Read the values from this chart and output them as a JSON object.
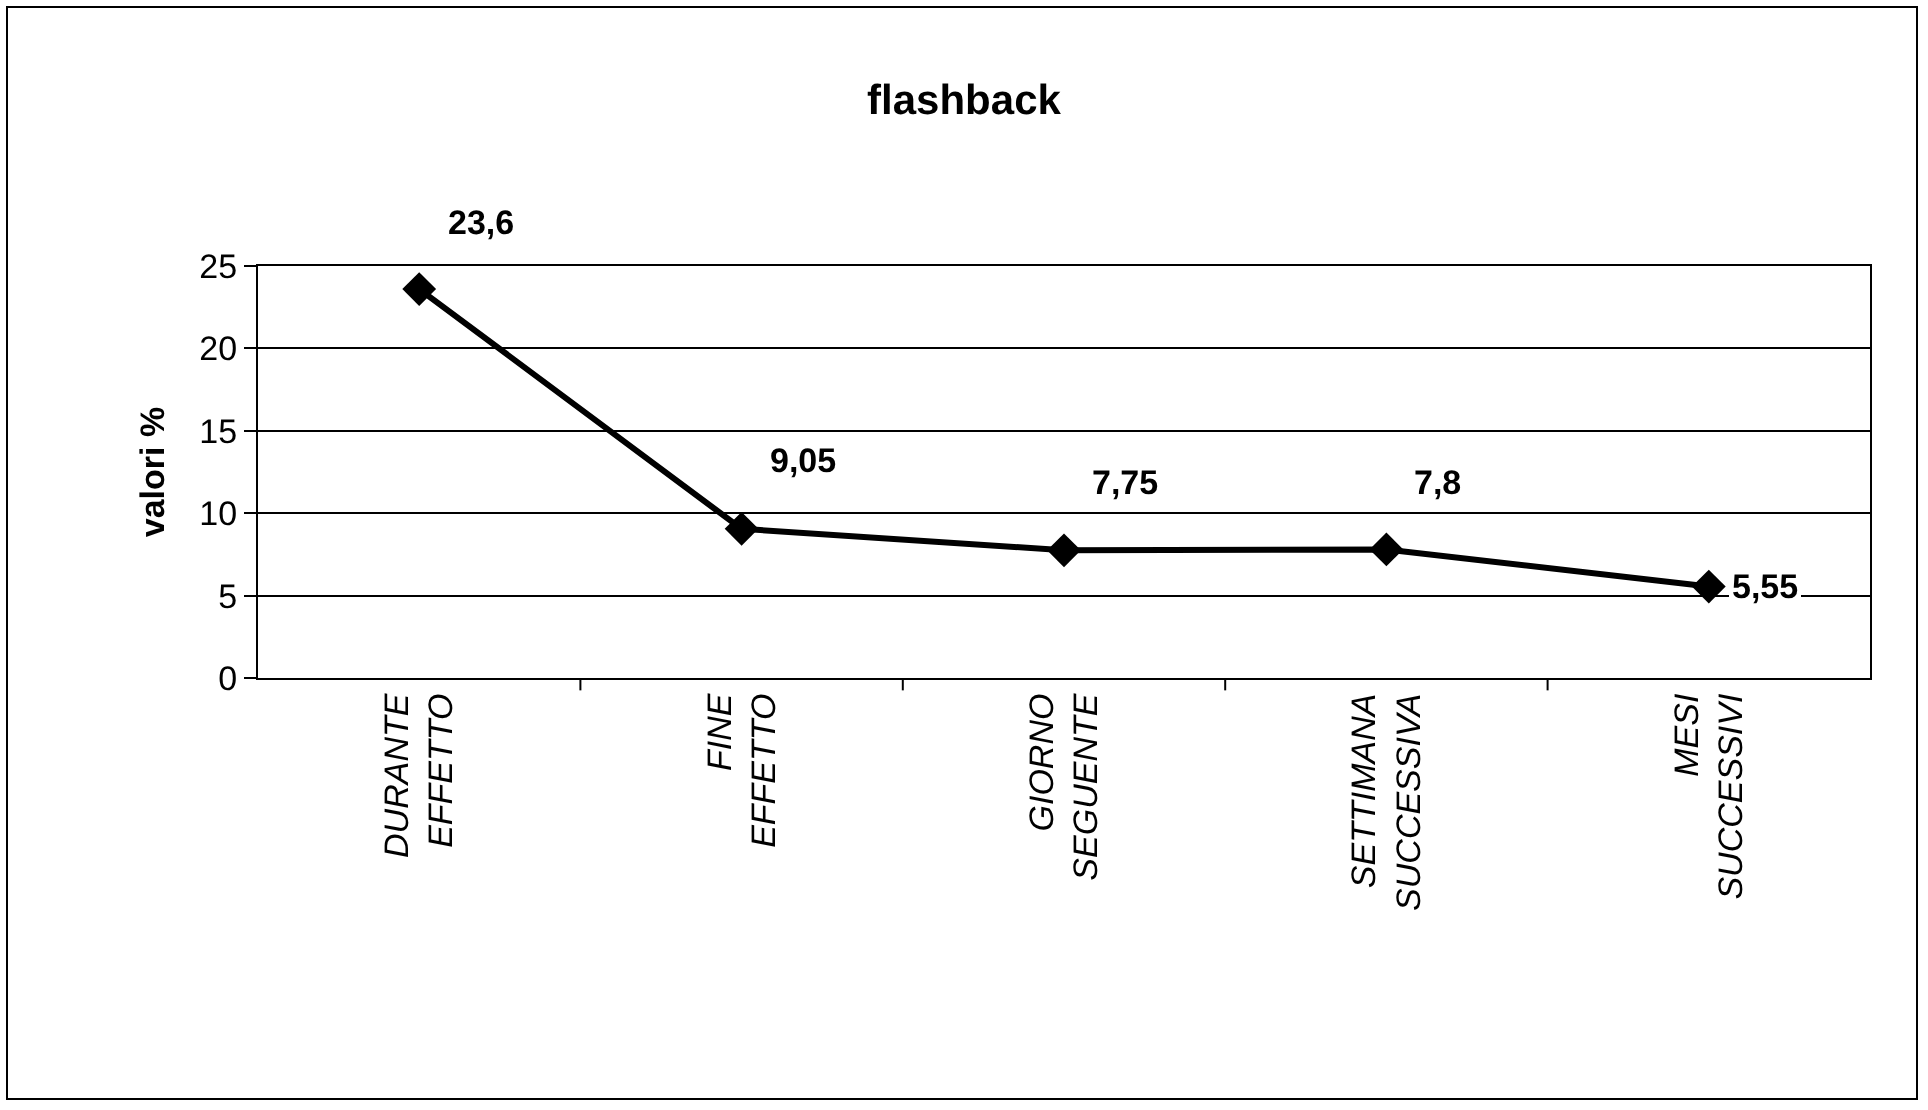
{
  "chart_data": {
    "type": "line",
    "title": "flashback",
    "ylabel": "valori %",
    "categories": [
      "DURANTE\nEFFETTO",
      "FINE\nEFFETTO",
      "GIORNO\nSEGUENTE",
      "SETTIMANA\nSUCCESSIVA",
      "MESI\nSUCCESSIVI"
    ],
    "values": [
      23.6,
      9.05,
      7.75,
      7.8,
      5.55
    ],
    "value_labels": [
      "23,6",
      "9,05",
      "7,75",
      "7,8",
      "5,55"
    ],
    "color": "#000000",
    "marker": "diamond",
    "line_style": "solid",
    "ylim": [
      0,
      25
    ],
    "yticks": [
      0,
      5,
      10,
      15,
      20,
      25
    ],
    "grid": "y"
  }
}
